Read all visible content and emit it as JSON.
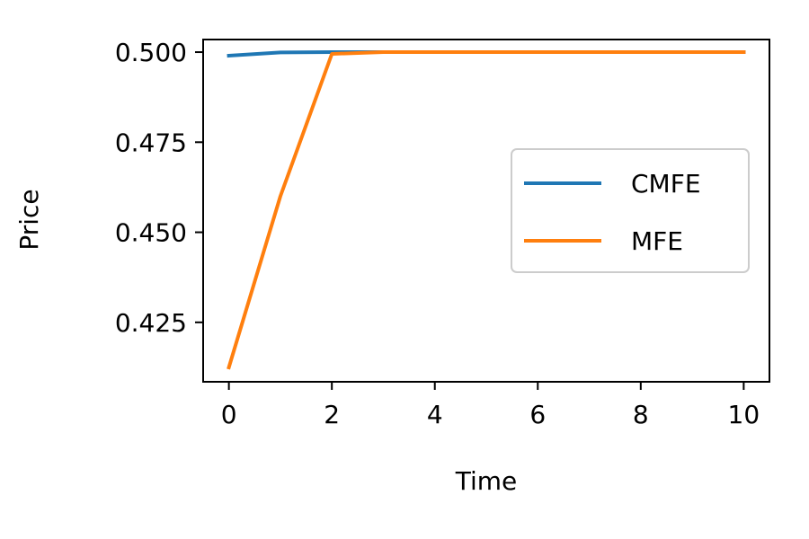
{
  "chart_data": {
    "type": "line",
    "xlabel": "Time",
    "ylabel": "Price",
    "xlim": [
      -0.5,
      10.5
    ],
    "ylim": [
      0.4085,
      0.5035
    ],
    "xticks": [
      0,
      2,
      4,
      6,
      8,
      10
    ],
    "xtick_labels": [
      "0",
      "2",
      "4",
      "6",
      "8",
      "10"
    ],
    "yticks": [
      0.425,
      0.45,
      0.475,
      0.5
    ],
    "ytick_labels": [
      "0.425",
      "0.450",
      "0.475",
      "0.500"
    ],
    "grid": false,
    "legend_position": "center-right",
    "series": [
      {
        "name": "CMFE",
        "color": "#1f77b4",
        "x": [
          0,
          1,
          2,
          3,
          4,
          5,
          6,
          7,
          8,
          9,
          10
        ],
        "y": [
          0.499,
          0.4999,
          0.5,
          0.5,
          0.5,
          0.5,
          0.5,
          0.5,
          0.5,
          0.5,
          0.5
        ]
      },
      {
        "name": "MFE",
        "color": "#ff7f0e",
        "x": [
          0,
          1,
          2,
          3,
          4,
          5,
          6,
          7,
          8,
          9,
          10
        ],
        "y": [
          0.4125,
          0.46,
          0.4995,
          0.5,
          0.5,
          0.5,
          0.5,
          0.5,
          0.5,
          0.5,
          0.5
        ]
      }
    ]
  }
}
